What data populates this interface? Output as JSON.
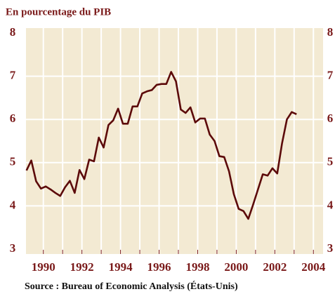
{
  "chart_data": {
    "type": "line",
    "title": "En pourcentage du PIB",
    "source": "Source : Bureau of Economic Analysis (États-Unis)",
    "x": [
      1989.125,
      1989.375,
      1989.625,
      1989.875,
      1990.125,
      1990.375,
      1990.625,
      1990.875,
      1991.125,
      1991.375,
      1991.625,
      1991.875,
      1992.125,
      1992.375,
      1992.625,
      1992.875,
      1993.125,
      1993.375,
      1993.625,
      1993.875,
      1994.125,
      1994.375,
      1994.625,
      1994.875,
      1995.125,
      1995.375,
      1995.625,
      1995.875,
      1996.125,
      1996.375,
      1996.625,
      1996.875,
      1997.125,
      1997.375,
      1997.625,
      1997.875,
      1998.125,
      1998.375,
      1998.625,
      1998.875,
      1999.125,
      1999.375,
      1999.625,
      1999.875,
      2000.125,
      2000.375,
      2000.625,
      2000.875,
      2001.125,
      2001.375,
      2001.625,
      2001.875,
      2002.125,
      2002.375,
      2002.625,
      2002.875,
      2003.125
    ],
    "series": [
      {
        "color": "#5c0a0a",
        "values": [
          4.82,
          5.05,
          4.57,
          4.4,
          4.45,
          4.38,
          4.3,
          4.23,
          4.43,
          4.58,
          4.3,
          4.83,
          4.62,
          5.07,
          5.03,
          5.58,
          5.35,
          5.87,
          5.98,
          6.25,
          5.9,
          5.9,
          6.3,
          6.3,
          6.6,
          6.65,
          6.68,
          6.8,
          6.82,
          6.82,
          7.1,
          6.88,
          6.23,
          6.15,
          6.28,
          5.93,
          6.02,
          6.02,
          5.65,
          5.5,
          5.15,
          5.13,
          4.8,
          4.27,
          3.93,
          3.88,
          3.7,
          4.03,
          4.38,
          4.73,
          4.7,
          4.87,
          4.75,
          5.45,
          6.0,
          6.17,
          6.12
        ]
      }
    ],
    "xlim": [
      1989.1,
      2004.5
    ],
    "xticks": [
      1990,
      1992,
      1994,
      1996,
      1998,
      2000,
      2002,
      2004
    ],
    "xminor": [
      1991,
      1993,
      1995,
      1997,
      1999,
      2001,
      2003
    ],
    "ylim": [
      3,
      8
    ],
    "yticks": [
      3,
      4,
      5,
      6,
      7,
      8
    ],
    "grid": true,
    "background": "#f3ead3"
  }
}
